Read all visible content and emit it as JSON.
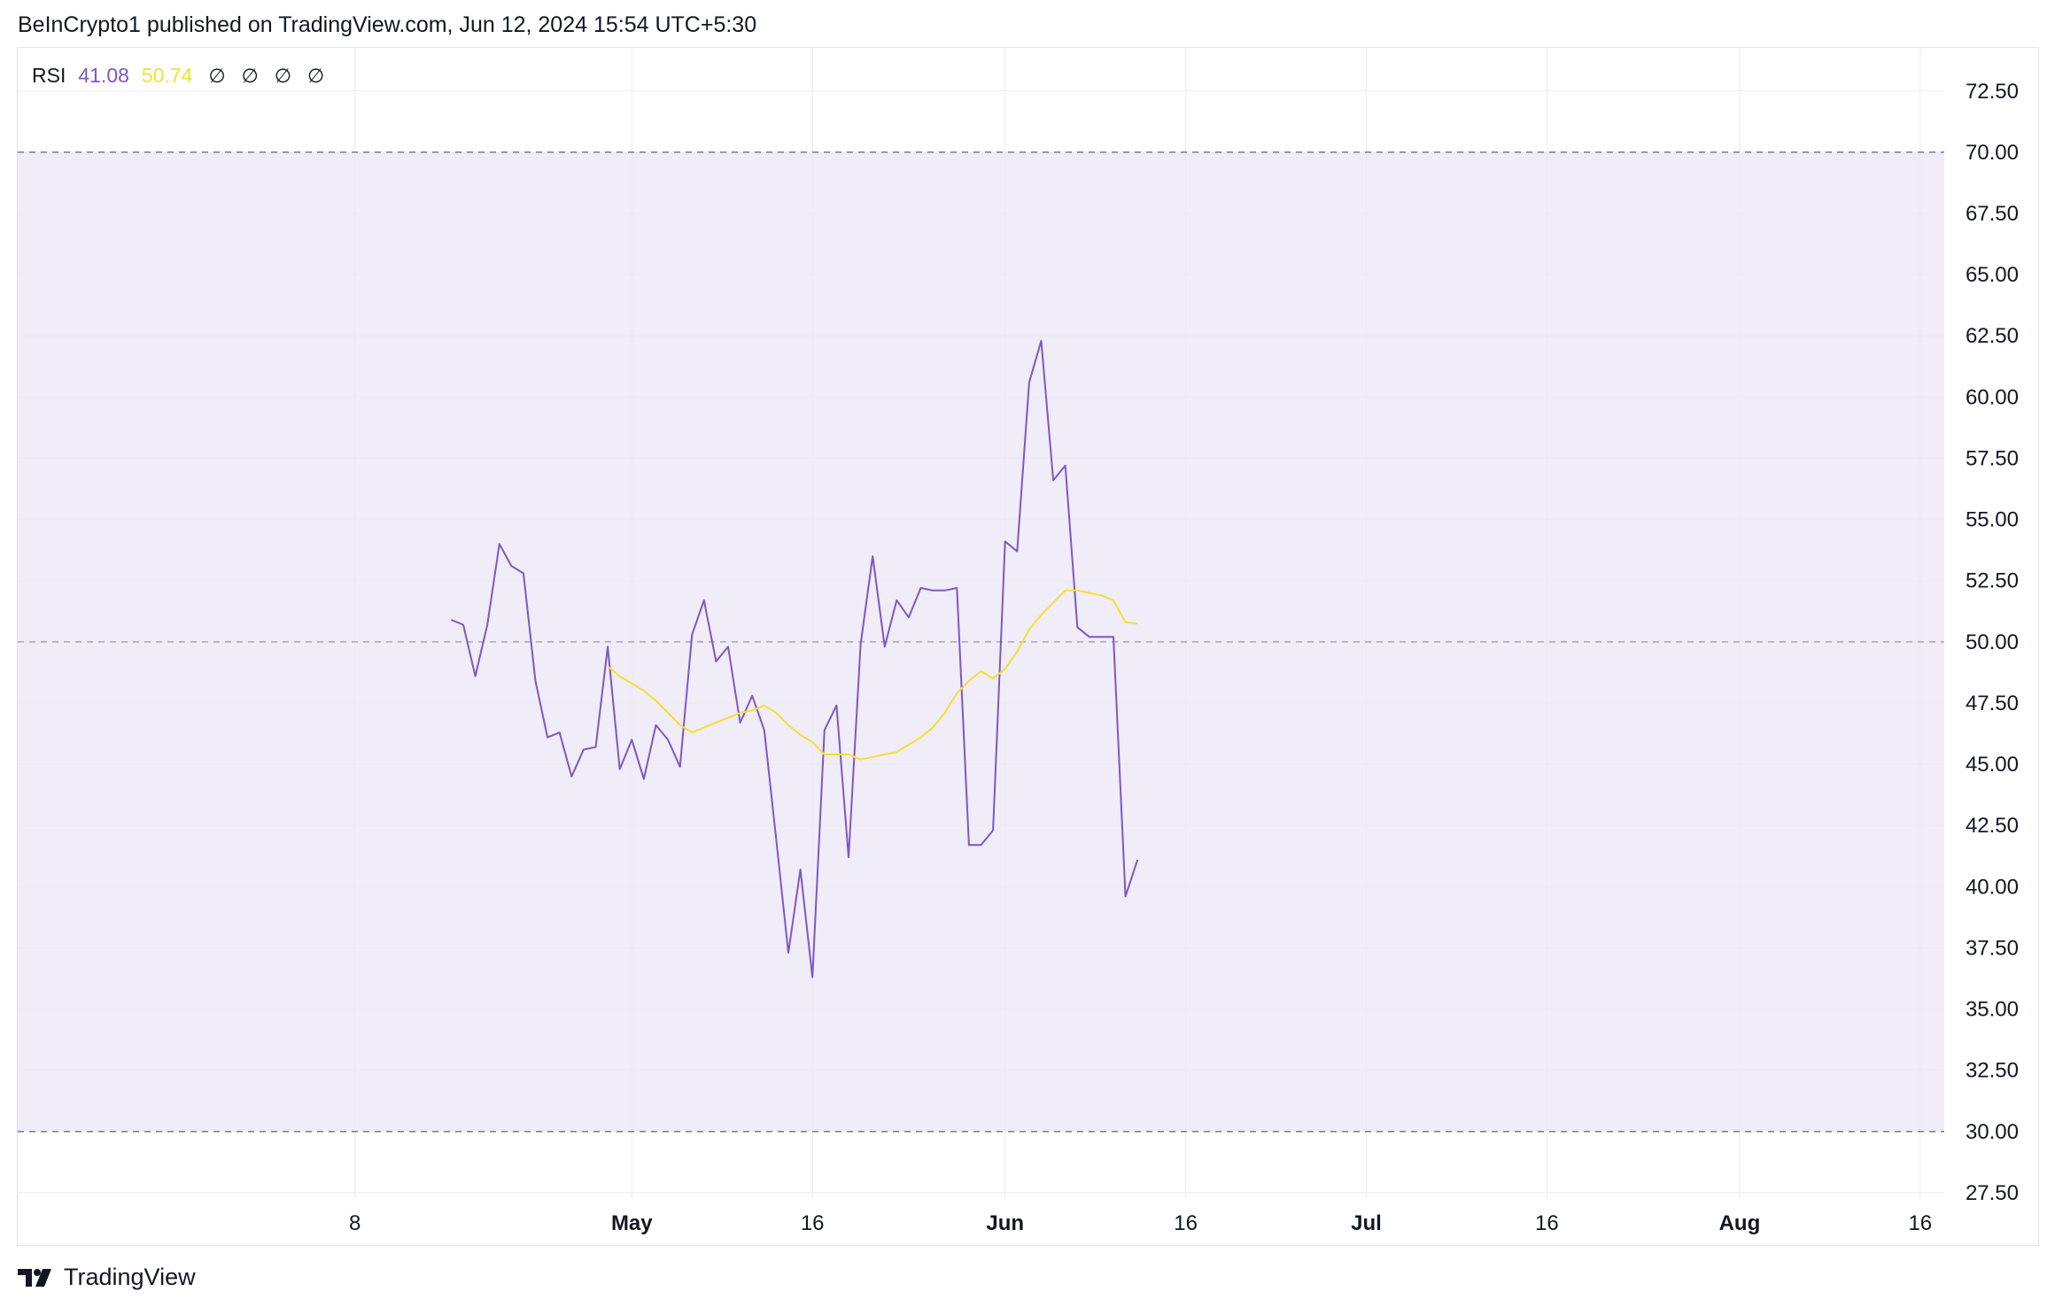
{
  "header": {
    "published": "BeInCrypto1 published on TradingView.com, Jun 12, 2024 15:54 UTC+5:30"
  },
  "legend": {
    "name": "RSI",
    "rsi_value": "41.08",
    "ma_value": "50.74",
    "nulls": [
      "∅",
      "∅",
      "∅",
      "∅"
    ]
  },
  "footer": {
    "brand": "TradingView"
  },
  "colors": {
    "rsi": "#7e57c2",
    "ma": "#f2e033",
    "band_fill": "#f0ecf8",
    "grid": "#eceaf0",
    "band_line": "#787b86"
  },
  "chart_data": {
    "type": "line",
    "title": "",
    "xlabel": "",
    "ylabel": "",
    "ylim": [
      25.4,
      74.3
    ],
    "y_ticks": [
      "72.50",
      "70.00",
      "67.50",
      "65.00",
      "62.50",
      "60.00",
      "57.50",
      "55.00",
      "52.50",
      "50.00",
      "47.50",
      "45.00",
      "42.50",
      "40.00",
      "37.50",
      "35.00",
      "32.50",
      "30.00",
      "27.50"
    ],
    "x_ticks": [
      {
        "label": "8",
        "date": "2024-04-08",
        "bold": false
      },
      {
        "label": "May",
        "date": "2024-05-01",
        "bold": true
      },
      {
        "label": "16",
        "date": "2024-05-16",
        "bold": false
      },
      {
        "label": "Jun",
        "date": "2024-06-01",
        "bold": true
      },
      {
        "label": "16",
        "date": "2024-06-16",
        "bold": false
      },
      {
        "label": "Jul",
        "date": "2024-07-01",
        "bold": true
      },
      {
        "label": "16",
        "date": "2024-07-16",
        "bold": false
      },
      {
        "label": "Aug",
        "date": "2024-08-01",
        "bold": true
      },
      {
        "label": "16",
        "date": "2024-08-16",
        "bold": false
      }
    ],
    "x_range": [
      "2024-03-11",
      "2024-08-18"
    ],
    "bands": {
      "upper": 70,
      "middle": 50,
      "lower": 30
    },
    "grid": true,
    "series": [
      {
        "color": "#7e57c2",
        "x": [
          "2024-04-16",
          "2024-04-17",
          "2024-04-18",
          "2024-04-19",
          "2024-04-20",
          "2024-04-21",
          "2024-04-22",
          "2024-04-23",
          "2024-04-24",
          "2024-04-25",
          "2024-04-26",
          "2024-04-27",
          "2024-04-28",
          "2024-04-29",
          "2024-04-30",
          "2024-05-01",
          "2024-05-02",
          "2024-05-03",
          "2024-05-04",
          "2024-05-05",
          "2024-05-06",
          "2024-05-07",
          "2024-05-08",
          "2024-05-09",
          "2024-05-10",
          "2024-05-11",
          "2024-05-12",
          "2024-05-13",
          "2024-05-14",
          "2024-05-15",
          "2024-05-16",
          "2024-05-17",
          "2024-05-18",
          "2024-05-19",
          "2024-05-20",
          "2024-05-21",
          "2024-05-22",
          "2024-05-23",
          "2024-05-24",
          "2024-05-25",
          "2024-05-26",
          "2024-05-27",
          "2024-05-28",
          "2024-05-29",
          "2024-05-30",
          "2024-05-31",
          "2024-06-01",
          "2024-06-02",
          "2024-06-03",
          "2024-06-04",
          "2024-06-05",
          "2024-06-06",
          "2024-06-07",
          "2024-06-08",
          "2024-06-09",
          "2024-06-10",
          "2024-06-11",
          "2024-06-12"
        ],
        "values": [
          50.9,
          50.7,
          48.6,
          50.7,
          54.0,
          53.1,
          52.8,
          48.4,
          46.1,
          46.3,
          44.5,
          45.6,
          45.7,
          49.8,
          44.8,
          46.0,
          44.4,
          46.6,
          46.0,
          44.9,
          50.3,
          51.7,
          49.2,
          49.8,
          46.7,
          47.8,
          46.4,
          41.9,
          37.3,
          40.7,
          36.3,
          46.4,
          47.4,
          41.2,
          49.9,
          53.5,
          49.8,
          51.7,
          51.0,
          52.2,
          52.1,
          52.1,
          52.2,
          41.7,
          41.7,
          42.3,
          54.1,
          53.7,
          60.6,
          62.3,
          56.6,
          57.2,
          50.6,
          50.2,
          50.2,
          50.2,
          39.6,
          41.1
        ]
      },
      {
        "color": "#f2e033",
        "x": [
          "2024-04-29",
          "2024-04-30",
          "2024-05-01",
          "2024-05-02",
          "2024-05-03",
          "2024-05-04",
          "2024-05-05",
          "2024-05-06",
          "2024-05-07",
          "2024-05-08",
          "2024-05-09",
          "2024-05-10",
          "2024-05-11",
          "2024-05-12",
          "2024-05-13",
          "2024-05-14",
          "2024-05-15",
          "2024-05-16",
          "2024-05-17",
          "2024-05-18",
          "2024-05-19",
          "2024-05-20",
          "2024-05-21",
          "2024-05-22",
          "2024-05-23",
          "2024-05-24",
          "2024-05-25",
          "2024-05-26",
          "2024-05-27",
          "2024-05-28",
          "2024-05-29",
          "2024-05-30",
          "2024-05-31",
          "2024-06-01",
          "2024-06-02",
          "2024-06-03",
          "2024-06-04",
          "2024-06-05",
          "2024-06-06",
          "2024-06-07",
          "2024-06-08",
          "2024-06-09",
          "2024-06-10",
          "2024-06-11",
          "2024-06-12"
        ],
        "values": [
          49.0,
          48.6,
          48.3,
          48.0,
          47.6,
          47.1,
          46.6,
          46.3,
          46.5,
          46.7,
          46.9,
          47.1,
          47.2,
          47.4,
          47.1,
          46.6,
          46.2,
          45.9,
          45.4,
          45.4,
          45.4,
          45.2,
          45.3,
          45.4,
          45.5,
          45.8,
          46.1,
          46.5,
          47.1,
          47.9,
          48.4,
          48.8,
          48.5,
          48.9,
          49.6,
          50.5,
          51.1,
          51.6,
          52.1,
          52.1,
          52.0,
          51.9,
          51.7,
          50.8,
          50.74
        ]
      }
    ]
  }
}
